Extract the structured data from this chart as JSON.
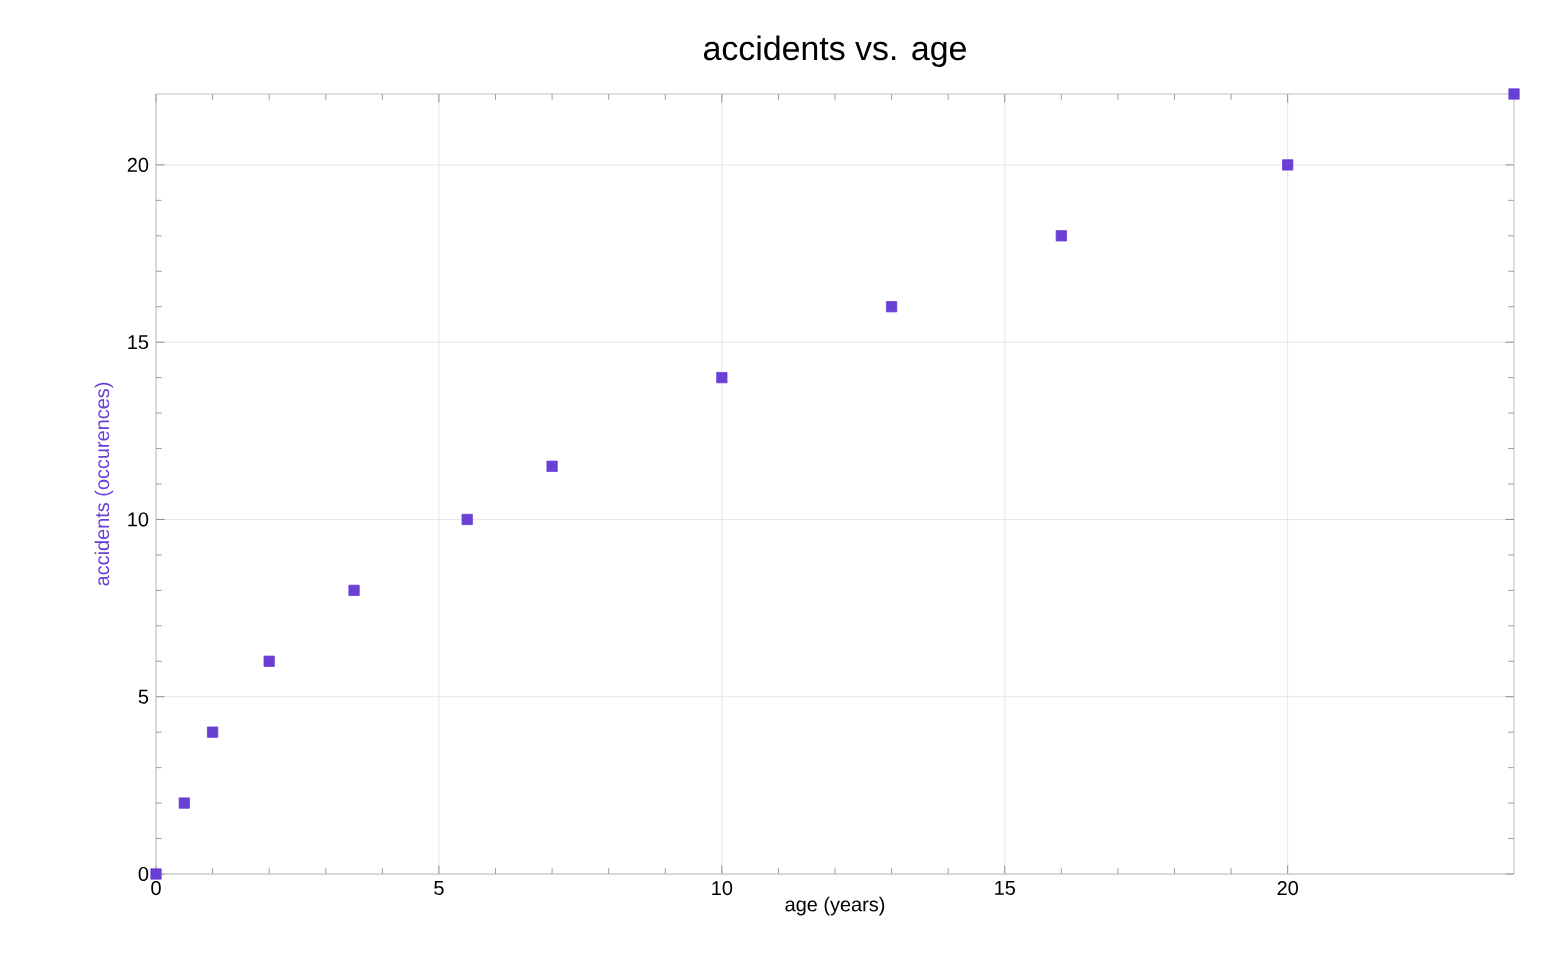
{
  "chart_data": {
    "type": "scatter",
    "title": "accidents vs. age",
    "xlabel": "age (years)",
    "ylabel": "accidents (occurences)",
    "x": [
      0,
      0.5,
      1,
      2,
      3.5,
      5.5,
      7,
      10,
      13,
      16,
      20,
      24
    ],
    "series": [
      {
        "color": "#6a3fd4",
        "values": [
          0,
          2,
          4,
          6,
          8,
          10,
          11.5,
          14,
          16,
          18,
          20,
          22
        ]
      }
    ],
    "xlim": [
      0,
      24
    ],
    "ylim": [
      0,
      22
    ],
    "xticks": [
      0,
      5,
      10,
      15,
      20
    ],
    "yticks": [
      0,
      5,
      10,
      15,
      20
    ],
    "grid": true,
    "marker": "square"
  }
}
